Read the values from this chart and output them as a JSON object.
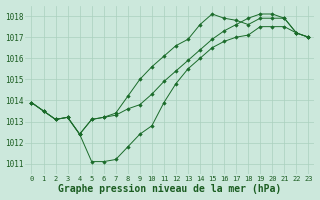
{
  "hours": [
    0,
    1,
    2,
    3,
    4,
    5,
    6,
    7,
    8,
    9,
    10,
    11,
    12,
    13,
    14,
    15,
    16,
    17,
    18,
    19,
    20,
    21,
    22,
    23
  ],
  "line1": [
    1013.9,
    1013.5,
    1013.1,
    1013.2,
    1012.4,
    1011.1,
    1011.1,
    1011.2,
    1011.8,
    1012.4,
    1012.8,
    1013.9,
    1014.8,
    1015.5,
    1016.0,
    1016.5,
    1016.8,
    1017.0,
    1017.1,
    1017.5,
    1017.5,
    1017.5,
    1017.2,
    1017.0
  ],
  "line2": [
    1013.9,
    1013.5,
    1013.1,
    1013.2,
    1012.4,
    1013.1,
    1013.2,
    1013.4,
    1014.2,
    1015.0,
    1015.6,
    1016.1,
    1016.6,
    1016.9,
    1017.6,
    1018.1,
    1017.9,
    1017.8,
    1017.6,
    1017.9,
    1017.9,
    1017.9,
    1017.2,
    1017.0
  ],
  "line3": [
    1013.9,
    1013.5,
    1013.1,
    1013.2,
    1012.4,
    1013.1,
    1013.2,
    1013.3,
    1013.6,
    1013.8,
    1014.3,
    1014.9,
    1015.4,
    1015.9,
    1016.4,
    1016.9,
    1017.3,
    1017.6,
    1017.9,
    1018.1,
    1018.1,
    1017.9,
    1017.2,
    1017.0
  ],
  "ylim_min": 1010.5,
  "ylim_max": 1018.5,
  "bg_color": "#cce8dc",
  "grid_color": "#aad0be",
  "line_color": "#1a6b2a",
  "marker_color": "#1a6b2a",
  "label_color": "#1a5c20",
  "title_fg": "#1a5c20",
  "yticks": [
    1011,
    1012,
    1013,
    1014,
    1015,
    1016,
    1017,
    1018
  ],
  "xtick_labels": [
    "0",
    "1",
    "2",
    "3",
    "4",
    "5",
    "6",
    "7",
    "8",
    "9",
    "10",
    "11",
    "12",
    "13",
    "14",
    "15",
    "16",
    "17",
    "18",
    "19",
    "20",
    "21",
    "22",
    "23"
  ],
  "xlabel": "Graphe pression niveau de la mer (hPa)",
  "xtick_fontsize": 5.0,
  "ytick_fontsize": 5.5,
  "title_fontsize": 7.0
}
